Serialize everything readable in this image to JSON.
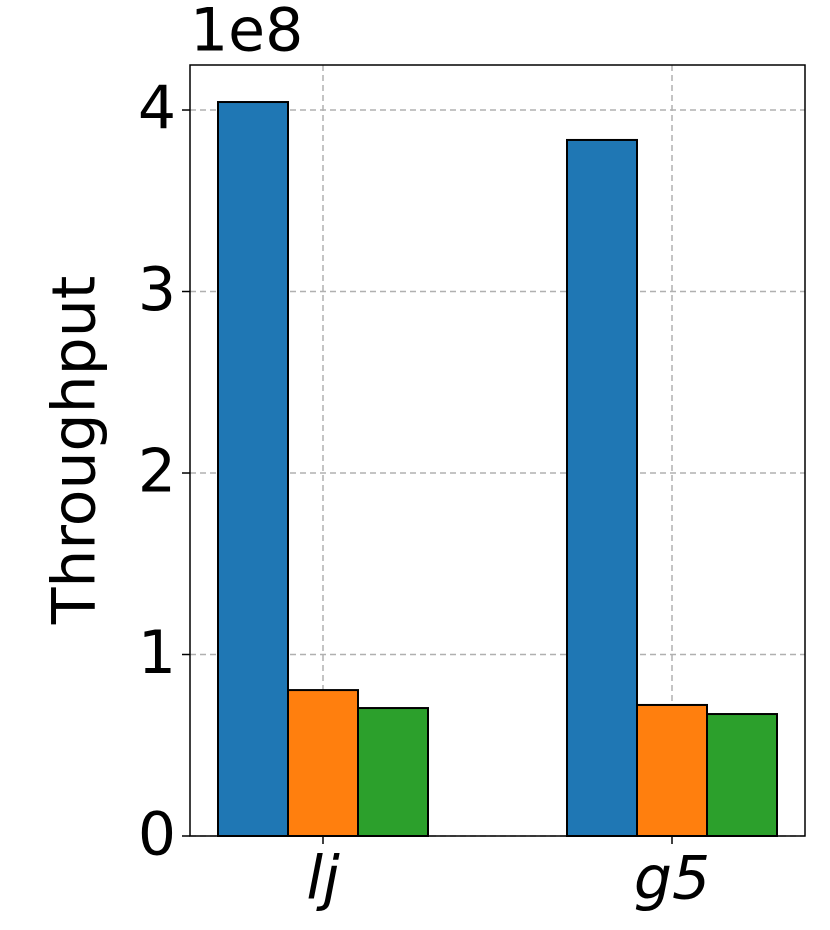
{
  "chart_data": {
    "type": "bar",
    "ylabel": "Throughput",
    "offset_text": "1e8",
    "categories": [
      "lj",
      "g5"
    ],
    "series": [
      {
        "color": "#1f77b4",
        "values": [
          4.044,
          3.835
        ]
      },
      {
        "color": "#ff7f0e",
        "values": [
          0.804,
          0.722
        ]
      },
      {
        "color": "#2ca02c",
        "values": [
          0.705,
          0.672
        ]
      }
    ],
    "ylim": [
      0,
      4.248
    ],
    "yticks": [
      0,
      1,
      2,
      3,
      4
    ],
    "grid": true
  }
}
